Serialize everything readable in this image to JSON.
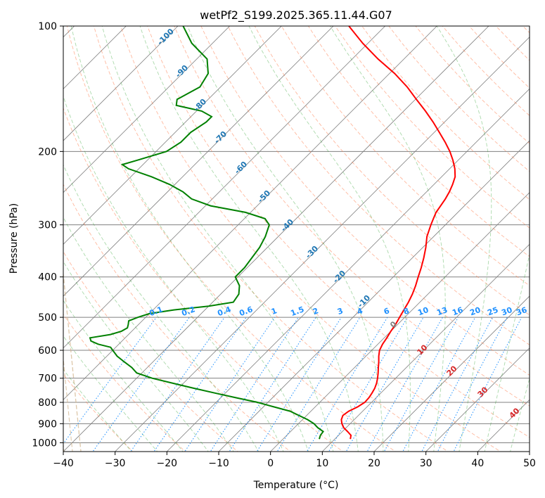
{
  "chart_data": {
    "type": "line",
    "diagram": "skew-T log-P",
    "title": "wetPf2_S199.2025.365.11.44.G07",
    "xlabel": "Temperature (°C)",
    "ylabel": "Pressure (hPa)",
    "xlim": [
      -40,
      50
    ],
    "ylim": [
      1050,
      100
    ],
    "x_ticks": [
      -40,
      -30,
      -20,
      -10,
      0,
      10,
      20,
      30,
      40,
      50
    ],
    "y_ticks": [
      1000,
      900,
      800,
      700,
      600,
      500,
      400,
      300,
      200,
      100
    ],
    "grid": true,
    "colors": {
      "temperature": "#ff0000",
      "dewpoint": "#008000",
      "isotherm": "#808080",
      "dry_adiabat": "#ff7f50",
      "moist_adiabat": "#2ca02c",
      "mixing_ratio": "#1e90ff",
      "saturation_curve": "#d2b48c",
      "moist_label": "#1f77b4",
      "dry_label": "#d62728",
      "zero_label": "#808080"
    },
    "series": [
      {
        "name": "Temperature",
        "pressure": [
          980,
          960,
          940,
          920,
          900,
          880,
          860,
          840,
          820,
          800,
          780,
          760,
          740,
          720,
          700,
          680,
          660,
          640,
          620,
          600,
          580,
          560,
          540,
          520,
          500,
          480,
          460,
          440,
          420,
          400,
          380,
          360,
          340,
          320,
          300,
          290,
          280,
          270,
          260,
          250,
          240,
          230,
          220,
          210,
          200,
          190,
          180,
          170,
          160,
          150,
          140,
          130,
          120,
          110,
          100
        ],
        "values": [
          13.0,
          12.4,
          11.0,
          9.5,
          8.4,
          7.5,
          7.0,
          7.3,
          8.2,
          8.7,
          8.6,
          8.3,
          7.9,
          7.3,
          6.5,
          5.6,
          4.6,
          3.6,
          2.5,
          1.5,
          0.9,
          0.5,
          0.0,
          -0.4,
          -1.0,
          -1.6,
          -2.2,
          -3.0,
          -4.0,
          -5.2,
          -6.4,
          -7.8,
          -9.4,
          -11.3,
          -12.8,
          -13.5,
          -14.2,
          -14.6,
          -15.0,
          -15.6,
          -16.4,
          -17.4,
          -19.0,
          -21.0,
          -23.3,
          -26.0,
          -29.0,
          -32.2,
          -35.8,
          -39.8,
          -44.0,
          -49.0,
          -55.0,
          -61.0,
          -67.0
        ]
      },
      {
        "name": "Dewpoint",
        "pressure": [
          980,
          960,
          940,
          920,
          900,
          880,
          860,
          840,
          820,
          800,
          780,
          760,
          740,
          720,
          700,
          680,
          660,
          640,
          620,
          600,
          590,
          580,
          570,
          560,
          550,
          540,
          530,
          520,
          510,
          500,
          490,
          480,
          470,
          460,
          440,
          420,
          400,
          380,
          360,
          340,
          320,
          300,
          290,
          280,
          270,
          260,
          250,
          240,
          230,
          220,
          215,
          210,
          200,
          190,
          180,
          170,
          165,
          160,
          155,
          150,
          140,
          130,
          120,
          110,
          100
        ],
        "values": [
          7.0,
          6.5,
          6.3,
          4.5,
          3.0,
          1.0,
          -1.5,
          -4.0,
          -8.0,
          -12.0,
          -17.0,
          -22.0,
          -27.0,
          -32.0,
          -37.0,
          -41.0,
          -43.0,
          -45.5,
          -48.0,
          -50.0,
          -51.0,
          -54.0,
          -56.0,
          -56.8,
          -53.5,
          -52.0,
          -51.5,
          -52.0,
          -52.6,
          -51.5,
          -50.0,
          -46.0,
          -40.0,
          -36.0,
          -36.5,
          -38.0,
          -40.5,
          -40.5,
          -41.0,
          -41.5,
          -42.5,
          -44.0,
          -46.0,
          -51.0,
          -59.0,
          -64.0,
          -67.0,
          -71.0,
          -76.0,
          -82.0,
          -84.0,
          -82.0,
          -78.0,
          -77.0,
          -77.0,
          -76.0,
          -76.0,
          -79.0,
          -85.0,
          -86.0,
          -84.0,
          -85.0,
          -88.0,
          -94.0,
          -99.0
        ]
      }
    ],
    "moist_adiabat_labels": [
      "-100",
      "-90",
      "-80",
      "-70",
      "-60",
      "-50",
      "-40",
      "-30",
      "-20",
      "-10",
      "0"
    ],
    "dry_adiabat_labels": [
      "10",
      "20",
      "30",
      "40"
    ],
    "mixing_ratio_labels": [
      "0.1",
      "0.2",
      "0.4",
      "0.6",
      "1",
      "1.5",
      "2",
      "3",
      "4",
      "6",
      "8",
      "10",
      "13",
      "16",
      "20",
      "25",
      "30",
      "36"
    ]
  }
}
